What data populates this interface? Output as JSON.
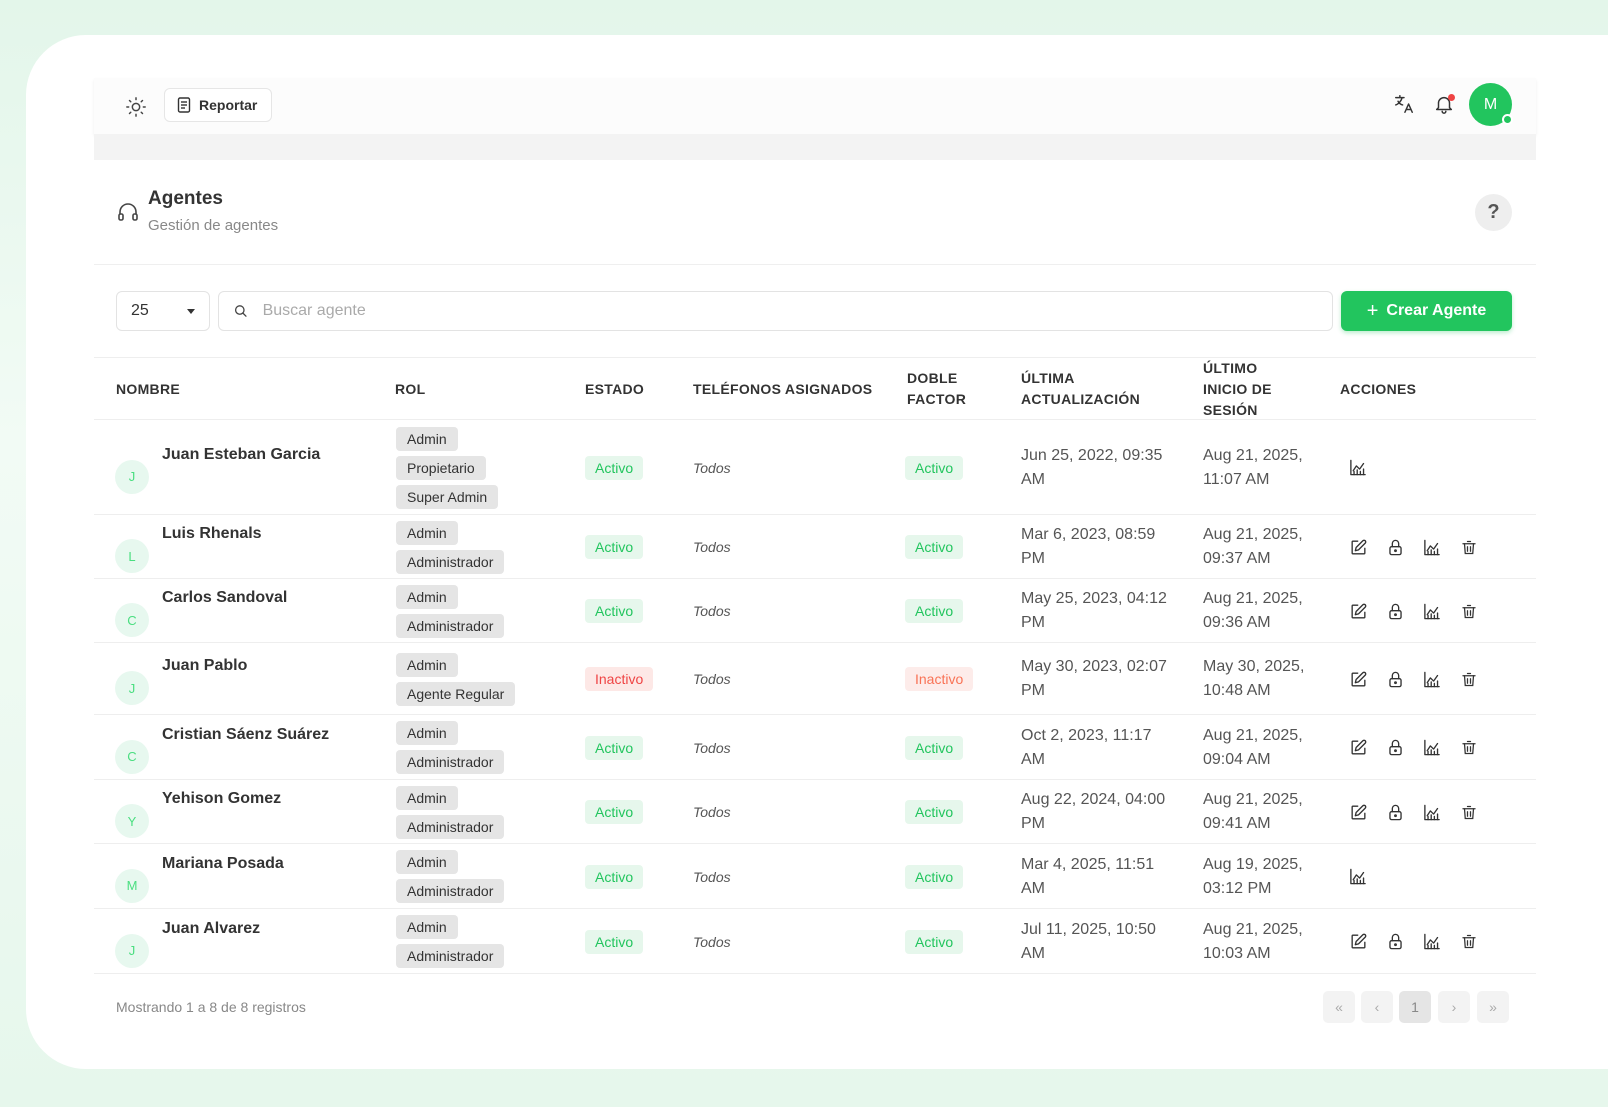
{
  "topbar": {
    "report_label": "Reportar",
    "avatar_initial": "M",
    "icons": [
      "sun-icon",
      "document-icon",
      "translate-icon",
      "bell-icon"
    ]
  },
  "page": {
    "title": "Agentes",
    "subtitle": "Gestión de agentes",
    "help_label": "?"
  },
  "toolbar": {
    "page_size": "25",
    "search_placeholder": "Buscar agente",
    "create_label": "Crear Agente",
    "create_icon": "+"
  },
  "table": {
    "headers": {
      "nombre": "NOMBRE",
      "rol": "ROL",
      "estado": "ESTADO",
      "telefonos": "TELÉFONOS ASIGNADOS",
      "doble_factor": "DOBLE FACTOR",
      "ultima_actualizacion": "ÚLTIMA ACTUALIZACIÓN",
      "ultimo_inicio": "ÚLTIMO INICIO DE SESIÓN",
      "acciones": "ACCIONES"
    },
    "rows": [
      {
        "initial": "J",
        "name": "Juan Esteban Garcia",
        "roles": [
          "Admin",
          "Propietario",
          "Super Admin"
        ],
        "status": "Activo",
        "phones": "Todos",
        "two_factor": "Activo",
        "updated": "Jun 25, 2022, 09:35 AM",
        "last_login": "Aug 21, 2025, 11:07 AM",
        "actions": [
          "chart"
        ]
      },
      {
        "initial": "L",
        "name": "Luis Rhenals",
        "roles": [
          "Admin",
          "Administrador"
        ],
        "status": "Activo",
        "phones": "Todos",
        "two_factor": "Activo",
        "updated": "Mar 6, 2023, 08:59 PM",
        "last_login": "Aug 21, 2025, 09:37 AM",
        "actions": [
          "edit",
          "lock",
          "chart",
          "trash"
        ]
      },
      {
        "initial": "C",
        "name": "Carlos Sandoval",
        "roles": [
          "Admin",
          "Administrador"
        ],
        "status": "Activo",
        "phones": "Todos",
        "two_factor": "Activo",
        "updated": "May 25, 2023, 04:12 PM",
        "last_login": "Aug 21, 2025, 09:36 AM",
        "actions": [
          "edit",
          "lock",
          "chart",
          "trash"
        ]
      },
      {
        "initial": "J",
        "name": "Juan Pablo",
        "roles": [
          "Admin",
          "Agente Regular"
        ],
        "status": "Inactivo",
        "phones": "Todos",
        "two_factor": "Inactivo",
        "updated": "May 30, 2023, 02:07 PM",
        "last_login": "May 30, 2025, 10:48 AM",
        "actions": [
          "edit",
          "lock",
          "chart",
          "trash"
        ]
      },
      {
        "initial": "C",
        "name": "Cristian Sáenz Suárez",
        "roles": [
          "Admin",
          "Administrador"
        ],
        "status": "Activo",
        "phones": "Todos",
        "two_factor": "Activo",
        "updated": "Oct 2, 2023, 11:17 AM",
        "last_login": "Aug 21, 2025, 09:04 AM",
        "actions": [
          "edit",
          "lock",
          "chart",
          "trash"
        ]
      },
      {
        "initial": "Y",
        "name": "Yehison Gomez",
        "roles": [
          "Admin",
          "Administrador"
        ],
        "status": "Activo",
        "phones": "Todos",
        "two_factor": "Activo",
        "updated": "Aug 22, 2024, 04:00 PM",
        "last_login": "Aug 21, 2025, 09:41 AM",
        "actions": [
          "edit",
          "lock",
          "chart",
          "trash"
        ]
      },
      {
        "initial": "M",
        "name": "Mariana Posada",
        "roles": [
          "Admin",
          "Administrador"
        ],
        "status": "Activo",
        "phones": "Todos",
        "two_factor": "Activo",
        "updated": "Mar 4, 2025, 11:51 AM",
        "last_login": "Aug 19, 2025, 03:12 PM",
        "actions": [
          "chart"
        ]
      },
      {
        "initial": "J",
        "name": "Juan Alvarez",
        "roles": [
          "Admin",
          "Administrador"
        ],
        "status": "Activo",
        "phones": "Todos",
        "two_factor": "Activo",
        "updated": "Jul 11, 2025, 10:50 AM",
        "last_login": "Aug 21, 2025, 10:03 AM",
        "actions": [
          "edit",
          "lock",
          "chart",
          "trash"
        ]
      }
    ]
  },
  "footer": {
    "summary": "Mostrando 1 a 8 de 8 registros",
    "pager": {
      "first": "«",
      "prev": "‹",
      "current": "1",
      "next": "›",
      "last": "»"
    }
  },
  "colors": {
    "accent": "#22c55e",
    "danger": "#ef4444"
  }
}
